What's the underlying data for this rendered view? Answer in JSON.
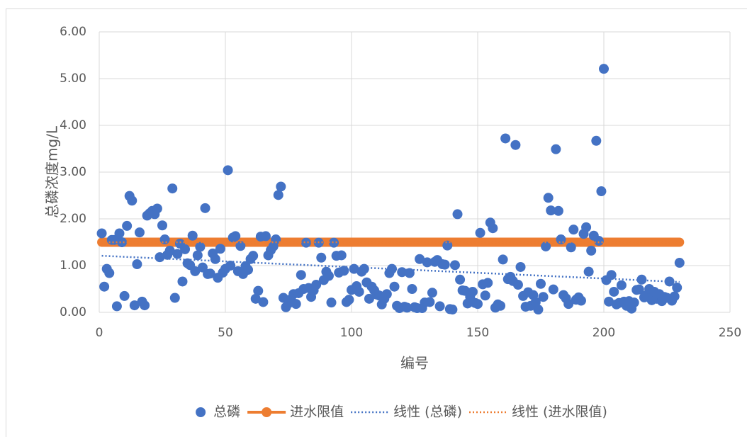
{
  "chart_data": {
    "type": "scatter",
    "xlabel": "编号",
    "ylabel": "总磷浓度mg/L",
    "xlim": [
      0,
      250
    ],
    "xticks": [
      0,
      50,
      100,
      150,
      200,
      250
    ],
    "ylim": [
      0,
      6
    ],
    "yticks": [
      {
        "value": 0,
        "label": "0.00"
      },
      {
        "value": 1,
        "label": "1.00"
      },
      {
        "value": 2,
        "label": "2.00"
      },
      {
        "value": 3,
        "label": "3.00"
      },
      {
        "value": 4,
        "label": "4.00"
      },
      {
        "value": 5,
        "label": "5.00"
      },
      {
        "value": 6,
        "label": "6.00"
      }
    ],
    "grid": true,
    "legend": "bottom",
    "series": [
      {
        "name": "总磷",
        "type": "scatter",
        "color": "#4472c4",
        "x": [
          1,
          2,
          3,
          4,
          5,
          6,
          7,
          8,
          9,
          10,
          11,
          12,
          13,
          14,
          15,
          16,
          17,
          18,
          19,
          20,
          21,
          22,
          23,
          24,
          25,
          26,
          27,
          28,
          29,
          30,
          31,
          32,
          33,
          34,
          35,
          36,
          37,
          38,
          39,
          40,
          41,
          42,
          43,
          44,
          45,
          46,
          47,
          48,
          49,
          50,
          51,
          52,
          53,
          54,
          55,
          56,
          57,
          58,
          59,
          60,
          61,
          62,
          63,
          64,
          65,
          66,
          67,
          68,
          69,
          70,
          71,
          72,
          73,
          74,
          75,
          76,
          77,
          78,
          79,
          80,
          81,
          82,
          83,
          84,
          85,
          86,
          87,
          88,
          89,
          90,
          91,
          92,
          93,
          94,
          95,
          96,
          97,
          98,
          99,
          100,
          101,
          102,
          103,
          104,
          105,
          106,
          107,
          108,
          109,
          110,
          111,
          112,
          113,
          114,
          115,
          116,
          117,
          118,
          119,
          120,
          121,
          122,
          123,
          124,
          125,
          126,
          127,
          128,
          129,
          130,
          131,
          132,
          133,
          134,
          135,
          136,
          137,
          138,
          139,
          140,
          141,
          142,
          143,
          144,
          145,
          146,
          147,
          148,
          149,
          150,
          151,
          152,
          153,
          154,
          155,
          156,
          157,
          158,
          159,
          160,
          161,
          162,
          163,
          164,
          165,
          166,
          167,
          168,
          169,
          170,
          171,
          172,
          173,
          174,
          175,
          176,
          177,
          178,
          179,
          180,
          181,
          182,
          183,
          184,
          185,
          186,
          187,
          188,
          189,
          190,
          191,
          192,
          193,
          194,
          195,
          196,
          197,
          198,
          199,
          200,
          201,
          202,
          203,
          204,
          205,
          206,
          207,
          208,
          209,
          210,
          211,
          212,
          213,
          214,
          215,
          216,
          217,
          218,
          219,
          220,
          221,
          222,
          223,
          224,
          225,
          226,
          227,
          228,
          229,
          230
        ],
        "values": [
          1.69,
          0.55,
          0.93,
          0.84,
          1.55,
          1.55,
          0.13,
          1.69,
          1.5,
          0.35,
          1.85,
          2.49,
          2.39,
          0.15,
          1.03,
          1.71,
          0.23,
          0.15,
          2.07,
          2.12,
          2.17,
          2.1,
          2.22,
          1.18,
          1.86,
          1.56,
          1.23,
          1.32,
          2.65,
          0.31,
          1.25,
          1.47,
          0.66,
          1.35,
          1.05,
          1.01,
          1.64,
          0.88,
          1.22,
          1.4,
          0.96,
          2.23,
          0.82,
          0.83,
          1.26,
          1.14,
          0.74,
          1.36,
          0.85,
          0.93,
          3.04,
          1.0,
          1.6,
          1.63,
          0.88,
          1.42,
          0.82,
          0.99,
          0.91,
          1.14,
          1.21,
          0.29,
          0.46,
          1.62,
          0.22,
          1.63,
          1.22,
          1.33,
          1.41,
          1.56,
          2.51,
          2.69,
          0.31,
          0.11,
          0.19,
          0.28,
          0.39,
          0.18,
          0.41,
          0.8,
          0.5,
          1.49,
          0.52,
          0.33,
          0.47,
          0.59,
          1.49,
          1.17,
          0.69,
          0.87,
          0.78,
          0.21,
          1.49,
          1.21,
          0.85,
          1.22,
          0.89,
          0.22,
          0.27,
          0.48,
          0.93,
          0.56,
          0.44,
          0.87,
          0.93,
          0.64,
          0.29,
          0.55,
          0.47,
          0.38,
          0.36,
          0.17,
          0.29,
          0.39,
          0.84,
          0.93,
          0.55,
          0.14,
          0.09,
          0.86,
          0.12,
          0.1,
          0.84,
          0.5,
          0.11,
          0.09,
          1.14,
          0.09,
          0.21,
          1.07,
          0.22,
          0.42,
          1.08,
          1.12,
          0.13,
          1.03,
          1.02,
          1.43,
          0.07,
          0.06,
          1.01,
          2.1,
          0.7,
          0.47,
          0.46,
          0.19,
          0.33,
          0.44,
          0.2,
          0.18,
          1.7,
          0.6,
          0.36,
          0.63,
          1.92,
          1.8,
          0.1,
          0.17,
          0.14,
          1.13,
          3.72,
          0.71,
          0.76,
          0.67,
          3.58,
          0.59,
          0.97,
          0.35,
          0.12,
          0.43,
          0.14,
          0.37,
          0.22,
          0.06,
          0.61,
          0.33,
          1.41,
          2.45,
          2.18,
          0.49,
          3.49,
          2.17,
          1.56,
          0.37,
          0.3,
          0.18,
          1.39,
          1.77,
          0.27,
          0.32,
          0.25,
          1.68,
          1.82,
          0.87,
          1.32,
          1.64,
          3.67,
          1.53,
          2.59,
          5.21,
          0.69,
          0.23,
          0.8,
          0.44,
          0.17,
          0.2,
          0.58,
          0.23,
          0.14,
          0.24,
          0.08,
          0.21,
          0.48,
          0.49,
          0.7,
          0.32,
          0.37,
          0.5,
          0.26,
          0.44,
          0.29,
          0.39,
          0.24,
          0.33,
          0.31,
          0.66,
          0.25,
          0.34,
          0.53,
          1.06
        ]
      },
      {
        "name": "进水限值",
        "type": "line",
        "color": "#ed7d31",
        "x": [
          1,
          230
        ],
        "values": [
          1.5,
          1.5
        ]
      },
      {
        "name": "线性 (总磷)",
        "type": "trendline",
        "color": "#4472c4",
        "x": [
          1,
          230
        ],
        "values": [
          1.21,
          0.65
        ]
      },
      {
        "name": "线性 (进水限值)",
        "type": "trendline",
        "color": "#ed7d31",
        "x": [
          1,
          230
        ],
        "values": [
          1.5,
          1.5
        ]
      }
    ]
  }
}
